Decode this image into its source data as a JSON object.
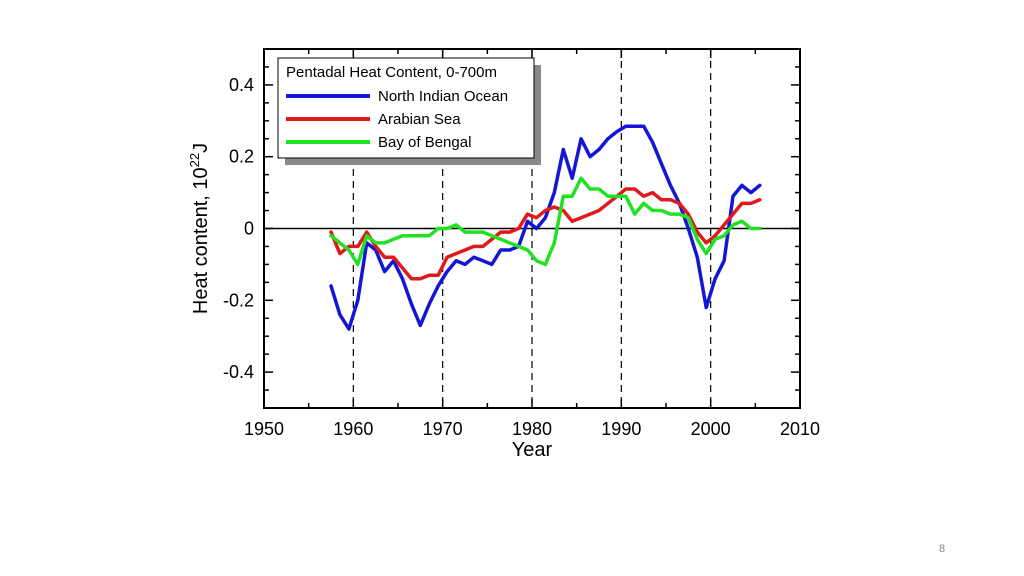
{
  "slide": {
    "page_number": "8"
  },
  "chart_data": {
    "type": "line",
    "xlabel": "Year",
    "ylabel": "Heat content, 10",
    "ylabel_superscript": "22",
    "ylabel_unit": "J",
    "xlim": [
      1950,
      2010
    ],
    "ylim": [
      -0.5,
      0.5
    ],
    "x_ticks": [
      1950,
      1960,
      1970,
      1980,
      1990,
      2000,
      2010
    ],
    "x_tick_labels": [
      "1950",
      "1960",
      "1970",
      "1980",
      "1990",
      "2000",
      "2010"
    ],
    "y_ticks": [
      -0.4,
      -0.2,
      0,
      0.2,
      0.4
    ],
    "y_tick_labels": [
      "-0.4",
      "-0.2",
      "0",
      "0.2",
      "0.4"
    ],
    "dashed_reference_years": [
      1960,
      1970,
      1980,
      1990,
      2000
    ],
    "zero_line": true,
    "legend_title": "Pentadal Heat Content, 0-700m",
    "legend_position": "top-left",
    "series": [
      {
        "name": "North Indian Ocean",
        "color": "#1515d6",
        "x": [
          1957.5,
          1958.5,
          1959.5,
          1960.5,
          1961.5,
          1962.5,
          1963.5,
          1964.5,
          1965.5,
          1966.5,
          1967.5,
          1968.5,
          1969.5,
          1970.5,
          1971.5,
          1972.5,
          1973.5,
          1974.5,
          1975.5,
          1976.5,
          1977.5,
          1978.5,
          1979.5,
          1980.5,
          1981.5,
          1982.5,
          1983.5,
          1984.5,
          1985.5,
          1986.5,
          1987.5,
          1988.5,
          1989.5,
          1990.5,
          1991.5,
          1992.5,
          1993.5,
          1994.5,
          1995.5,
          1996.5,
          1997.5,
          1998.5,
          1999.5,
          2000.5,
          2001.5,
          2002.5,
          2003.5,
          2004.5,
          2005.5
        ],
        "values": [
          -0.16,
          -0.24,
          -0.28,
          -0.2,
          -0.04,
          -0.06,
          -0.12,
          -0.09,
          -0.14,
          -0.21,
          -0.27,
          -0.21,
          -0.16,
          -0.12,
          -0.09,
          -0.1,
          -0.08,
          -0.09,
          -0.1,
          -0.06,
          -0.06,
          -0.05,
          0.02,
          0.0,
          0.03,
          0.1,
          0.22,
          0.14,
          0.25,
          0.2,
          0.22,
          0.25,
          0.27,
          0.285,
          0.285,
          0.285,
          0.24,
          0.18,
          0.12,
          0.07,
          0.0,
          -0.08,
          -0.22,
          -0.14,
          -0.09,
          0.09,
          0.12,
          0.1,
          0.12
        ]
      },
      {
        "name": "Arabian Sea",
        "color": "#e01a1a",
        "x": [
          1957.5,
          1958.5,
          1959.5,
          1960.5,
          1961.5,
          1962.5,
          1963.5,
          1964.5,
          1965.5,
          1966.5,
          1967.5,
          1968.5,
          1969.5,
          1970.5,
          1971.5,
          1972.5,
          1973.5,
          1974.5,
          1975.5,
          1976.5,
          1977.5,
          1978.5,
          1979.5,
          1980.5,
          1981.5,
          1982.5,
          1983.5,
          1984.5,
          1985.5,
          1986.5,
          1987.5,
          1988.5,
          1989.5,
          1990.5,
          1991.5,
          1992.5,
          1993.5,
          1994.5,
          1995.5,
          1996.5,
          1997.5,
          1998.5,
          1999.5,
          2000.5,
          2001.5,
          2002.5,
          2003.5,
          2004.5,
          2005.5
        ],
        "values": [
          -0.01,
          -0.07,
          -0.05,
          -0.05,
          -0.01,
          -0.05,
          -0.08,
          -0.08,
          -0.11,
          -0.14,
          -0.14,
          -0.13,
          -0.13,
          -0.08,
          -0.07,
          -0.06,
          -0.05,
          -0.05,
          -0.03,
          -0.01,
          -0.01,
          0.0,
          0.04,
          0.03,
          0.05,
          0.06,
          0.05,
          0.02,
          0.03,
          0.04,
          0.05,
          0.07,
          0.09,
          0.11,
          0.11,
          0.09,
          0.1,
          0.08,
          0.08,
          0.07,
          0.04,
          -0.01,
          -0.04,
          -0.02,
          0.01,
          0.04,
          0.07,
          0.07,
          0.08
        ]
      },
      {
        "name": "Bay of Bengal",
        "color": "#22e022",
        "x": [
          1957.5,
          1958.5,
          1959.5,
          1960.5,
          1961.5,
          1962.5,
          1963.5,
          1964.5,
          1965.5,
          1966.5,
          1967.5,
          1968.5,
          1969.5,
          1970.5,
          1971.5,
          1972.5,
          1973.5,
          1974.5,
          1975.5,
          1976.5,
          1977.5,
          1978.5,
          1979.5,
          1980.5,
          1981.5,
          1982.5,
          1983.5,
          1984.5,
          1985.5,
          1986.5,
          1987.5,
          1988.5,
          1989.5,
          1990.5,
          1991.5,
          1992.5,
          1993.5,
          1994.5,
          1995.5,
          1996.5,
          1997.5,
          1998.5,
          1999.5,
          2000.5,
          2001.5,
          2002.5,
          2003.5,
          2004.5,
          2005.5
        ],
        "values": [
          -0.02,
          -0.04,
          -0.06,
          -0.1,
          -0.02,
          -0.04,
          -0.04,
          -0.03,
          -0.02,
          -0.02,
          -0.02,
          -0.02,
          0.0,
          0.0,
          0.01,
          -0.01,
          -0.01,
          -0.01,
          -0.02,
          -0.03,
          -0.04,
          -0.05,
          -0.06,
          -0.09,
          -0.1,
          -0.04,
          0.09,
          0.09,
          0.14,
          0.11,
          0.11,
          0.09,
          0.09,
          0.09,
          0.04,
          0.07,
          0.05,
          0.05,
          0.04,
          0.04,
          0.03,
          -0.03,
          -0.07,
          -0.03,
          -0.02,
          0.01,
          0.02,
          0.0,
          0.0
        ]
      }
    ]
  }
}
